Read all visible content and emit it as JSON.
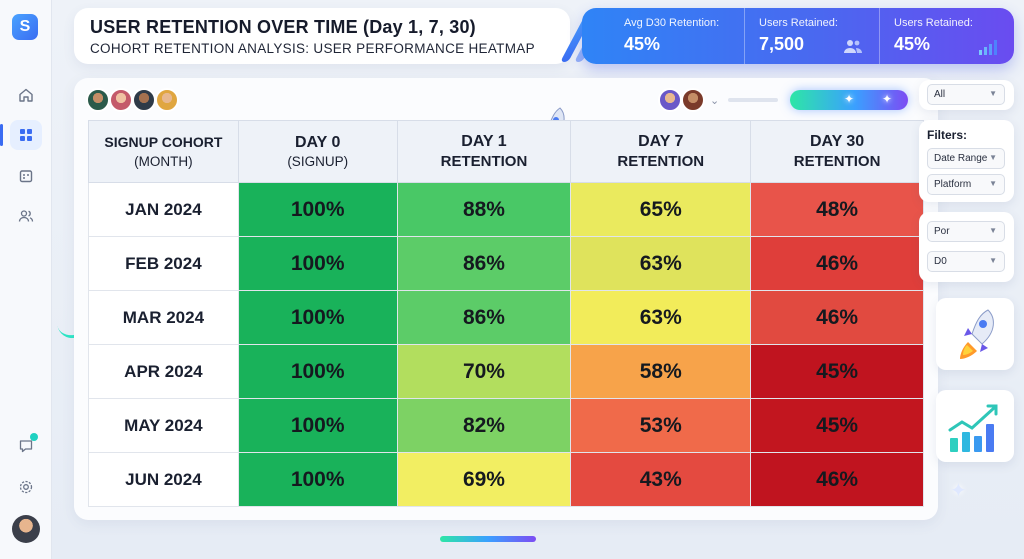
{
  "app": {
    "logo_letter": "S"
  },
  "header": {
    "title": "USER RETENTION OVER TIME (Day 1, 7, 30)",
    "subtitle": "COHORT RETENTION ANALYSIS: USER PERFORMANCE HEATMAP"
  },
  "stats": [
    {
      "label": "Avg D30 Retention:",
      "value": "45%"
    },
    {
      "label": "Users Retained:",
      "value": "7,500",
      "icon": "users-icon"
    },
    {
      "label": "Users Retained:",
      "value": "45%",
      "icon": "bar-chart-icon"
    }
  ],
  "sidebar": {
    "items": [
      {
        "icon": "home-icon"
      },
      {
        "icon": "dashboard-icon",
        "active": true
      },
      {
        "icon": "calendar-icon"
      },
      {
        "icon": "users-icon"
      }
    ],
    "bottom": [
      {
        "icon": "chat-icon"
      },
      {
        "icon": "settings-icon"
      }
    ]
  },
  "table": {
    "headers": [
      {
        "line1": "SIGNUP COHORT",
        "line2": "(MONTH)"
      },
      {
        "line1": "DAY 0",
        "line2": "(SIGNUP)"
      },
      {
        "line1": "DAY 1",
        "line2": "RETENTION"
      },
      {
        "line1": "DAY 7",
        "line2": "RETENTION"
      },
      {
        "line1": "DAY 30",
        "line2": "RETENTION"
      }
    ],
    "rows": [
      {
        "cohort": "JAN 2024",
        "d0": "100%",
        "d1": "88%",
        "d7": "65%",
        "d30": "48%"
      },
      {
        "cohort": "FEB 2024",
        "d0": "100%",
        "d1": "86%",
        "d7": "63%",
        "d30": "46%"
      },
      {
        "cohort": "MAR 2024",
        "d0": "100%",
        "d1": "86%",
        "d7": "63%",
        "d30": "46%"
      },
      {
        "cohort": "APR 2024",
        "d0": "100%",
        "d1": "70%",
        "d7": "58%",
        "d30": "45%"
      },
      {
        "cohort": "MAY 2024",
        "d0": "100%",
        "d1": "82%",
        "d7": "53%",
        "d30": "45%"
      },
      {
        "cohort": "JUN 2024",
        "d0": "100%",
        "d1": "69%",
        "d7": "43%",
        "d30": "46%"
      }
    ]
  },
  "filters": {
    "top_select": "All",
    "label": "Filters:",
    "date_range": "Date Range",
    "platform": "Platform",
    "por": "Por",
    "d0": "D0"
  },
  "colors": {
    "accent": "#3a6cf2",
    "heat_green": "#1bb35a",
    "heat_yellow": "#f0ea5a",
    "heat_red": "#c0141f"
  }
}
